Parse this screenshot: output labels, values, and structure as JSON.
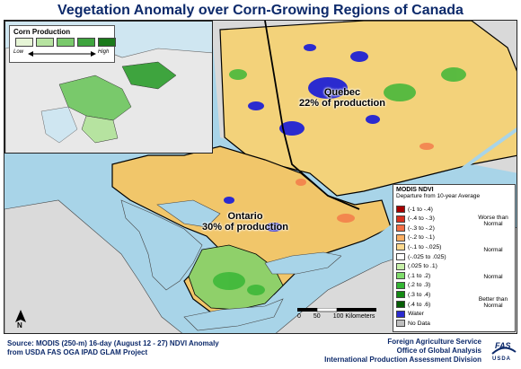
{
  "title": "Vegetation Anomaly over Corn-Growing Regions of Canada",
  "inset": {
    "legend_title": "Corn Production",
    "low_label": "Low",
    "high_label": "High",
    "colors": [
      "#e6f5d6",
      "#b6e3a0",
      "#79c96b",
      "#3ea43e",
      "#1b7a1b"
    ]
  },
  "regions": [
    {
      "name": "Quebec",
      "share": "22% of production"
    },
    {
      "name": "Ontario",
      "share": "30% of production"
    }
  ],
  "legend": {
    "title": "MODIS NDVI",
    "subtitle": "Departure from 10-year Average",
    "classes": [
      {
        "label": "(-1 to -.4)",
        "color": "#a50000"
      },
      {
        "label": "(-.4 to -.3)",
        "color": "#d7301f"
      },
      {
        "label": "(-.3 to -.2)",
        "color": "#f46d43"
      },
      {
        "label": "(-.2 to -.1)",
        "color": "#fdae61"
      },
      {
        "label": "(-.1 to -.025)",
        "color": "#fed98e"
      },
      {
        "label": "(-.025 to .025)",
        "color": "#ffffff"
      },
      {
        "label": "(.025 to .1)",
        "color": "#c7f0a8"
      },
      {
        "label": "(.1 to .2)",
        "color": "#7fdc6b"
      },
      {
        "label": "(.2 to .3)",
        "color": "#33b533"
      },
      {
        "label": "(.3 to .4)",
        "color": "#138a13"
      },
      {
        "label": "(.4 to .6)",
        "color": "#055d05"
      },
      {
        "label": "Water",
        "color": "#2b2bcf"
      },
      {
        "label": "No Data",
        "color": "#bfbfbf"
      }
    ],
    "groups": {
      "worse": "Worse than Normal",
      "normal1": "Normal",
      "normal2": "Normal",
      "better": "Better than Normal"
    }
  },
  "scale": {
    "ticks": [
      "0",
      "50",
      "100 Kilometers"
    ]
  },
  "north_label": "N",
  "footer": {
    "source_line1": "Source: MODIS (250-m) 16-day (August 12 - 27) NDVI Anomaly",
    "source_line2": "from USDA FAS OGA IPAD GLAM Project",
    "agency_line1": "Foreign Agriculture Service",
    "agency_line2": "Office of Global Analysis",
    "agency_line3": "International Production Assessment Division",
    "logo_text": "FAS",
    "logo_sub": "USDA"
  },
  "colors": {
    "title": "#0d2a6b",
    "water": "#a8d4e8",
    "land_outside": "#dadada",
    "boundary": "#000000"
  }
}
